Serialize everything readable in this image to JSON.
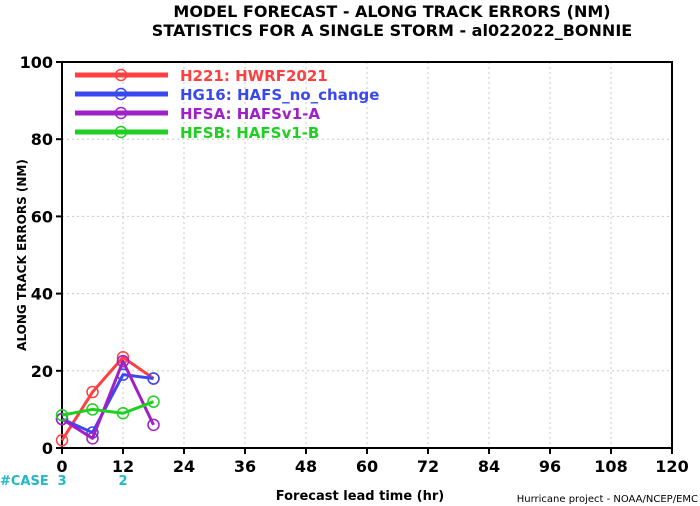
{
  "chart_data": {
    "type": "line",
    "title": "MODEL FORECAST - ALONG TRACK ERRORS (NM)",
    "subtitle": "STATISTICS FOR A SINGLE STORM - al022022_BONNIE",
    "xlabel": "Forecast lead time (hr)",
    "ylabel": "ALONG TRACK ERRORS (NM)",
    "xlim": [
      0,
      120
    ],
    "ylim": [
      0,
      100
    ],
    "xticks": [
      "0",
      "12",
      "24",
      "36",
      "48",
      "60",
      "72",
      "84",
      "96",
      "108",
      "120"
    ],
    "yticks": [
      "0",
      "20",
      "40",
      "60",
      "80",
      "100"
    ],
    "grid": true,
    "legend_position": "top-left",
    "cases_label": "#CASE",
    "cases": [
      {
        "x": "0",
        "count": "3"
      },
      {
        "x": "12",
        "count": "2"
      }
    ],
    "footer": "Hurricane project - NOAA/NCEP/EMC",
    "series": [
      {
        "name": "H221: HWRF2021",
        "color": "#ff4040",
        "x": [
          0,
          6,
          12,
          18
        ],
        "y": [
          2,
          14.5,
          23.5,
          18
        ]
      },
      {
        "name": "HG16: HAFS_no_change",
        "color": "#3a48f0",
        "x": [
          0,
          6,
          12,
          18
        ],
        "y": [
          7.5,
          4,
          19,
          18
        ]
      },
      {
        "name": "HFSA: HAFSv1-A",
        "color": "#a020c8",
        "x": [
          0,
          6,
          12,
          18
        ],
        "y": [
          7.5,
          2.5,
          22.5,
          6
        ]
      },
      {
        "name": "HFSB: HAFSv1-B",
        "color": "#20d020",
        "x": [
          0,
          6,
          12,
          18
        ],
        "y": [
          8.5,
          10,
          9,
          12
        ]
      }
    ]
  }
}
